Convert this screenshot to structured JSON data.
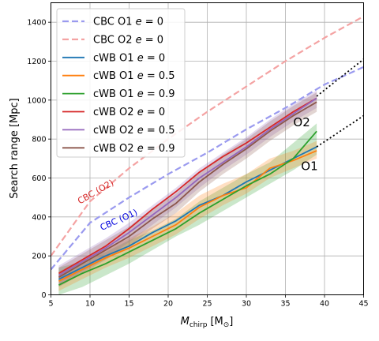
{
  "chart_data": {
    "type": "line",
    "xlabel_main": "M",
    "xlabel_sub": "chirp",
    "xlabel_unit": "[M",
    "xlabel_unit_sub": "⊙",
    "xlabel_unit_end": "]",
    "ylabel": "Search range [Mpc]",
    "xlim": [
      5,
      45
    ],
    "ylim": [
      0,
      1500
    ],
    "xticks": [
      5,
      10,
      15,
      20,
      25,
      30,
      35,
      40,
      45
    ],
    "yticks": [
      0,
      200,
      400,
      600,
      800,
      1000,
      1200,
      1400
    ],
    "grid": true,
    "legend_position": "top-left",
    "series": [
      {
        "name": "CBC O1 e = 0",
        "label_main": "CBC O1 ",
        "label_e": "e",
        "label_val": " = 0",
        "color": "#9a9aef",
        "dash": true,
        "x": [
          5,
          10,
          15,
          20,
          25,
          30,
          35,
          40,
          45
        ],
        "y": [
          130,
          370,
          500,
          620,
          730,
          850,
          960,
          1080,
          1170
        ]
      },
      {
        "name": "CBC O2 e = 0",
        "label_main": "CBC O2 ",
        "label_e": "e",
        "label_val": " = 0",
        "color": "#f4a3a3",
        "dash": true,
        "x": [
          5,
          10,
          15,
          20,
          25,
          30,
          35,
          40,
          45
        ],
        "y": [
          200,
          480,
          650,
          800,
          940,
          1070,
          1200,
          1320,
          1430
        ]
      },
      {
        "name": "cWB O1 e = 0",
        "label_main": "cWB O1 ",
        "label_e": "e",
        "label_val": " = 0",
        "color": "#1f77b4",
        "dash": false,
        "x": [
          6,
          9,
          12,
          15,
          18,
          21,
          24,
          27,
          30,
          33,
          36,
          39
        ],
        "y": [
          80,
          140,
          200,
          250,
          320,
          380,
          460,
          510,
          580,
          640,
          700,
          760
        ]
      },
      {
        "name": "cWB O1 e = 0.5",
        "label_main": "cWB O1 ",
        "label_e": "e",
        "label_val": " = 0.5",
        "color": "#ff7f0e",
        "dash": false,
        "x": [
          6,
          9,
          12,
          15,
          18,
          21,
          24,
          27,
          30,
          33,
          36,
          39
        ],
        "y": [
          70,
          130,
          190,
          240,
          300,
          360,
          450,
          510,
          550,
          650,
          690,
          740
        ]
      },
      {
        "name": "cWB O1 e = 0.9",
        "label_main": "cWB O1 ",
        "label_e": "e",
        "label_val": " = 0.9",
        "color": "#2ca02c",
        "dash": false,
        "x": [
          6,
          9,
          12,
          15,
          18,
          21,
          24,
          27,
          30,
          33,
          36,
          39
        ],
        "y": [
          50,
          110,
          160,
          220,
          280,
          340,
          420,
          490,
          560,
          620,
          700,
          840
        ]
      },
      {
        "name": "cWB O2 e = 0",
        "label_main": "cWB O2 ",
        "label_e": "e",
        "label_val": " = 0",
        "color": "#d62728",
        "dash": false,
        "x": [
          6,
          9,
          12,
          15,
          18,
          21,
          24,
          27,
          30,
          33,
          36,
          39
        ],
        "y": [
          110,
          180,
          250,
          340,
          440,
          530,
          630,
          710,
          780,
          860,
          940,
          1010
        ]
      },
      {
        "name": "cWB O2 e = 0.5",
        "label_main": "cWB O2 ",
        "label_e": "e",
        "label_val": " = 0.5",
        "color": "#9467bd",
        "dash": false,
        "x": [
          6,
          9,
          12,
          15,
          18,
          21,
          24,
          27,
          30,
          33,
          36,
          39
        ],
        "y": [
          100,
          170,
          240,
          320,
          410,
          500,
          600,
          680,
          760,
          850,
          930,
          1010
        ]
      },
      {
        "name": "cWB O2 e = 0.9",
        "label_main": "cWB O2 ",
        "label_e": "e",
        "label_val": " = 0.9",
        "color": "#8c564b",
        "dash": false,
        "x": [
          6,
          9,
          12,
          15,
          18,
          21,
          24,
          27,
          30,
          33,
          36,
          39
        ],
        "y": [
          90,
          160,
          230,
          300,
          390,
          470,
          580,
          670,
          750,
          840,
          920,
          990
        ]
      }
    ],
    "bands": [
      {
        "color": "#2ca02c",
        "x": [
          6,
          9,
          12,
          15,
          18,
          21,
          24,
          27,
          30,
          33,
          36,
          39
        ],
        "lower": [
          0,
          40,
          100,
          160,
          230,
          300,
          360,
          430,
          500,
          570,
          640,
          720
        ],
        "upper": [
          140,
          170,
          220,
          280,
          330,
          390,
          480,
          550,
          620,
          680,
          780,
          880
        ]
      },
      {
        "color": "#ff7f0e",
        "x": [
          6,
          9,
          12,
          15,
          18,
          21,
          24,
          27,
          30,
          33,
          36,
          39
        ],
        "lower": [
          20,
          80,
          140,
          190,
          250,
          310,
          390,
          460,
          520,
          600,
          650,
          700
        ],
        "upper": [
          120,
          180,
          240,
          290,
          350,
          420,
          510,
          570,
          620,
          700,
          740,
          790
        ]
      },
      {
        "color": "#9467bd",
        "x": [
          6,
          9,
          12,
          15,
          18,
          21,
          24,
          27,
          30,
          33,
          36,
          39
        ],
        "lower": [
          50,
          120,
          190,
          270,
          360,
          450,
          550,
          640,
          720,
          810,
          890,
          960
        ],
        "upper": [
          150,
          220,
          290,
          370,
          460,
          550,
          650,
          730,
          810,
          900,
          980,
          1050
        ]
      },
      {
        "color": "#8c564b",
        "x": [
          6,
          9,
          12,
          15,
          18,
          21,
          24,
          27,
          30,
          33,
          36,
          39
        ],
        "lower": [
          40,
          110,
          180,
          250,
          340,
          420,
          530,
          620,
          700,
          790,
          870,
          940
        ],
        "upper": [
          140,
          210,
          280,
          350,
          440,
          520,
          630,
          720,
          800,
          890,
          970,
          1040
        ]
      }
    ],
    "extrapolations": [
      {
        "x": [
          39,
          45
        ],
        "y": [
          1020,
          1210
        ]
      },
      {
        "x": [
          39,
          45
        ],
        "y": [
          760,
          920
        ]
      }
    ],
    "annotations": [
      {
        "text": "CBC (O2)",
        "x": 8.7,
        "y": 465,
        "angle": -30,
        "color": "#d62728",
        "size": 11
      },
      {
        "text": "CBC (O1)",
        "x": 11.5,
        "y": 330,
        "angle": -24,
        "color": "#0000dd",
        "size": 11
      },
      {
        "text": "O2",
        "x": 36,
        "y": 865,
        "angle": 0,
        "color": "#000000",
        "size": 15
      },
      {
        "text": "O1",
        "x": 37,
        "y": 640,
        "angle": 0,
        "color": "#000000",
        "size": 15
      }
    ]
  }
}
